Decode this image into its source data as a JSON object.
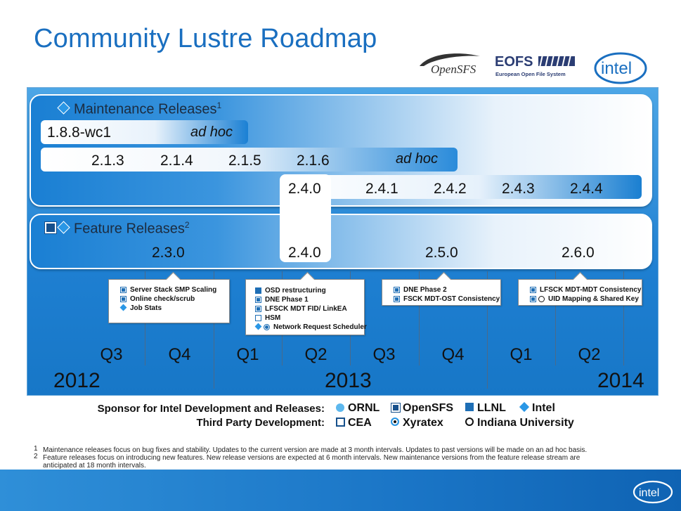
{
  "title": "Community Lustre Roadmap",
  "logos": {
    "opensfs": "OpenSFS",
    "eofs": "EOFS",
    "eofs_sub": "European Open File System",
    "intel": "intel"
  },
  "maintenance": {
    "heading": "Maintenance Releases",
    "sup": "1",
    "row1": {
      "release": "1.8.8-wc1",
      "adhoc": "ad hoc"
    },
    "row2": {
      "releases": [
        "2.1.3",
        "2.1.4",
        "2.1.5",
        "2.1.6"
      ],
      "adhoc": "ad hoc"
    },
    "row3": {
      "releases": [
        "2.4.0",
        "2.4.1",
        "2.4.2",
        "2.4.3",
        "2.4.4"
      ]
    }
  },
  "feature": {
    "heading": "Feature Releases",
    "sup": "2",
    "releases": [
      "2.3.0",
      "2.4.0",
      "2.5.0",
      "2.6.0"
    ]
  },
  "callouts": [
    {
      "items": [
        {
          "icon": "opensfs-icon",
          "text": "Server Stack SMP Scaling"
        },
        {
          "icon": "opensfs-icon",
          "text": "Online check/scrub"
        },
        {
          "icon": "intel-icon",
          "text": "Job Stats"
        }
      ]
    },
    {
      "items": [
        {
          "icon": "llnl-icon",
          "text": "OSD restructuring"
        },
        {
          "icon": "opensfs-icon",
          "text": "DNE Phase 1"
        },
        {
          "icon": "opensfs-icon",
          "text": "LFSCK MDT FID/ LinkEA"
        },
        {
          "icon": "cea-icon",
          "text": "HSM"
        },
        {
          "icon": "intel-xyratex-icon",
          "text": "Network Request Scheduler"
        }
      ]
    },
    {
      "items": [
        {
          "icon": "opensfs-icon",
          "text": "DNE Phase 2"
        },
        {
          "icon": "opensfs-icon",
          "text": "FSCK MDT-OST Consistency"
        }
      ]
    },
    {
      "items": [
        {
          "icon": "opensfs-icon",
          "text": "LFSCK MDT-MDT Consistency"
        },
        {
          "icon": "opensfs-indiana-icon",
          "text": "UID Mapping & Shared Key"
        }
      ]
    }
  ],
  "quarters": [
    "Q3",
    "Q4",
    "Q1",
    "Q2",
    "Q3",
    "Q4",
    "Q1",
    "Q2"
  ],
  "years": [
    "2012",
    "2013",
    "2014"
  ],
  "legend": {
    "sponsor_label": "Sponsor for Intel Development and Releases:",
    "third_label": "Third Party Development:",
    "sponsors": [
      "ORNL",
      "OpenSFS",
      "LLNL",
      "Intel"
    ],
    "third": [
      "CEA",
      "Xyratex",
      "Indiana University"
    ]
  },
  "footnotes": [
    {
      "num": "1",
      "text": "Maintenance releases focus on bug fixes and stability.  Updates to the current version are made at 3 month intervals. Updates to past versions will be made on an ad hoc basis."
    },
    {
      "num": "2",
      "text": "Feature releases focus on introducing new features.  New release versions are expected at 6 month intervals.  New maintenance versions from the feature release stream are"
    },
    {
      "num": "",
      "text": "anticipated at 18 month intervals."
    }
  ],
  "colors": {
    "title": "#1a6fc0",
    "panel": "#1e7fd1",
    "diamond": "#2a97e6",
    "square": "#16508c"
  }
}
